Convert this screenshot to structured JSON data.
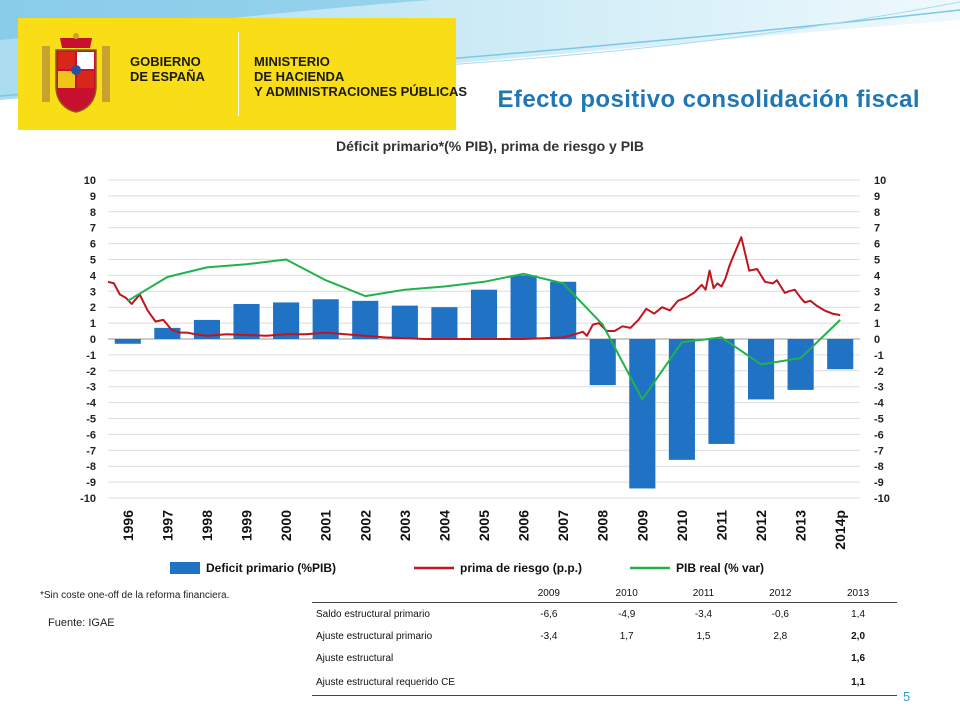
{
  "header": {
    "org_left": "GOBIERNO\nDE ESPAÑA",
    "org_right": "MINISTERIO\nDE HACIENDA\nY ADMINISTRACIONES PÚBLICAS",
    "slide_title": "Efecto positivo consolidación fiscal",
    "page_number": "5"
  },
  "colors": {
    "logo_yellow": "#f9dd16",
    "title_blue": "#1f77b4",
    "bar_blue": "#1f72c4",
    "line_red": "#c0141f",
    "line_green": "#21b24a"
  },
  "chart_data": {
    "type": "bar",
    "title": "Déficit primario*(% PIB), prima de riesgo  y PIB",
    "categories": [
      "1996",
      "1997",
      "1998",
      "1999",
      "2000",
      "2001",
      "2002",
      "2003",
      "2004",
      "2005",
      "2006",
      "2007",
      "2008",
      "2009",
      "2010",
      "2011",
      "2012",
      "2013",
      "2014p"
    ],
    "ylim": [
      -10,
      10
    ],
    "yticks": [
      10,
      9,
      8,
      7,
      6,
      5,
      4,
      3,
      2,
      1,
      0,
      -1,
      -2,
      -3,
      -4,
      -5,
      -6,
      -7,
      -8,
      -9,
      -10
    ],
    "grid": true,
    "legend_position": "bottom",
    "series": [
      {
        "name": "Deficit primario (%PIB)",
        "kind": "bar",
        "values": [
          -0.3,
          0.7,
          1.2,
          2.2,
          2.3,
          2.5,
          2.4,
          2.1,
          2.0,
          3.1,
          4.0,
          3.6,
          -2.9,
          -9.4,
          -7.6,
          -6.6,
          -3.8,
          -3.2,
          -1.9
        ]
      },
      {
        "name": "prima de riesgo (p.p.)",
        "kind": "line",
        "x": [
          0,
          0.15,
          0.3,
          0.45,
          0.6,
          0.8,
          1.0,
          1.2,
          1.4,
          1.6,
          1.8,
          2.0,
          2.2,
          2.5,
          3.0,
          3.5,
          4.0,
          4.5,
          5.0,
          5.5,
          6.0,
          7.0,
          8.0,
          9.0,
          10.0,
          10.5,
          11.0,
          11.5,
          11.8,
          12.0,
          12.1,
          12.25,
          12.4,
          12.6,
          12.8,
          13.0,
          13.2,
          13.4,
          13.6,
          13.8,
          14.0,
          14.2,
          14.4,
          14.6,
          14.8,
          15.0,
          15.1,
          15.2,
          15.3,
          15.4,
          15.5,
          15.6,
          15.7,
          15.8,
          16.0,
          16.2,
          16.4,
          16.6,
          16.8,
          16.9,
          17.0,
          17.1,
          17.2,
          17.35,
          17.5,
          17.6,
          17.75,
          17.9,
          18.1,
          18.3,
          18.5
        ],
        "y": [
          3.6,
          3.5,
          2.8,
          2.6,
          2.2,
          2.8,
          1.8,
          1.1,
          1.2,
          0.6,
          0.4,
          0.4,
          0.3,
          0.2,
          0.3,
          0.25,
          0.2,
          0.3,
          0.3,
          0.4,
          0.3,
          0.1,
          0.0,
          0.0,
          0.0,
          0.0,
          0.05,
          0.1,
          0.3,
          0.45,
          0.2,
          0.9,
          1.0,
          0.5,
          0.5,
          0.8,
          0.7,
          1.2,
          1.9,
          1.6,
          2.0,
          1.8,
          2.4,
          2.6,
          2.9,
          3.4,
          3.1,
          4.3,
          3.2,
          3.5,
          3.3,
          3.8,
          4.6,
          5.2,
          6.4,
          4.3,
          4.4,
          3.6,
          3.5,
          3.7,
          3.3,
          2.9,
          3.0,
          3.1,
          2.6,
          2.3,
          2.4,
          2.1,
          1.8,
          1.6,
          1.5
        ]
      },
      {
        "name": "PIB real (% var)",
        "kind": "line",
        "values": [
          2.4,
          3.9,
          4.5,
          4.7,
          5.0,
          3.7,
          2.7,
          3.1,
          3.3,
          3.6,
          4.1,
          3.5,
          0.9,
          -3.8,
          -0.2,
          0.1,
          -1.6,
          -1.2,
          1.2
        ]
      }
    ]
  },
  "footnote": "*Sin coste one-off de la reforma financiera.",
  "source": "Fuente: IGAE",
  "table": {
    "headers": [
      "",
      "2009",
      "2010",
      "2011",
      "2012",
      "2013"
    ],
    "rows": [
      {
        "label": "Saldo estructural primario",
        "cells": [
          "-6,6",
          "-4,9",
          "-3,4",
          "-0,6",
          "1,4"
        ]
      },
      {
        "label": "Ajuste estructural primario",
        "cells": [
          "-3,4",
          "1,7",
          "1,5",
          "2,8",
          "2,0"
        ]
      },
      {
        "label": "Ajuste estructural",
        "cells": [
          "",
          "",
          "",
          "",
          "1,6"
        ]
      },
      {
        "label": "Ajuste estructural requerido CE",
        "cells": [
          "",
          "",
          "",
          "",
          "1,1"
        ]
      }
    ]
  }
}
